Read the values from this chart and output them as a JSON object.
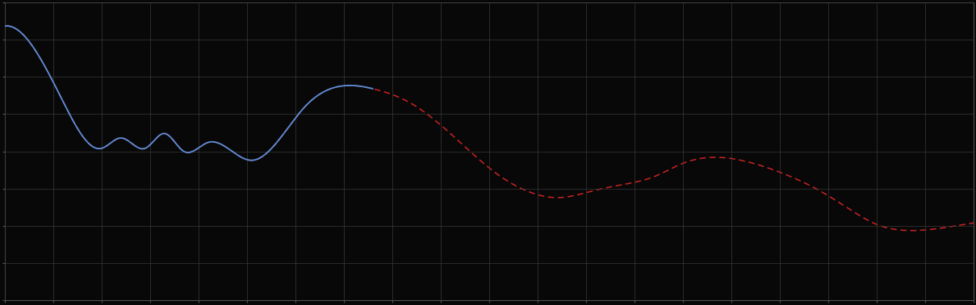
{
  "background_color": "#080808",
  "plot_bg_color": "#080808",
  "grid_color": "#3a3a3a",
  "blue_line_color": "#5b8dd9",
  "red_line_color": "#cc2222",
  "figsize": [
    12.09,
    3.78
  ],
  "dpi": 100,
  "spine_color": "#555555",
  "grid_nx": 20,
  "grid_ny": 8
}
